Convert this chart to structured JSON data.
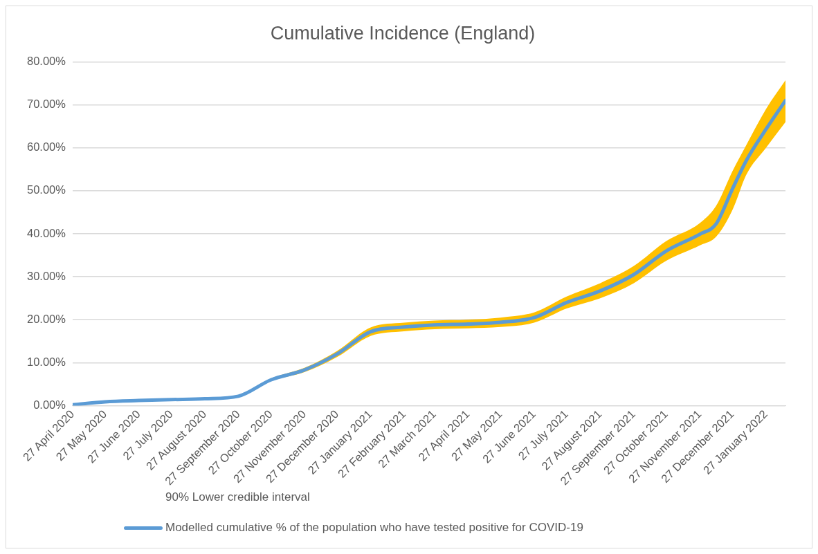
{
  "chart_data": {
    "type": "line",
    "title": "Cumulative Incidence (England)",
    "legend_title": "90% Lower credible interval",
    "legend": "bottom",
    "grid": "y",
    "marker": "none",
    "line_style": "solid",
    "x": [
      "2020-04-27",
      "2020-05-27",
      "2020-06-27",
      "2020-07-27",
      "2020-08-27",
      "2020-09-27",
      "2020-10-27",
      "2020-11-27",
      "2020-12-27",
      "2021-01-27",
      "2021-02-27",
      "2021-03-27",
      "2021-04-27",
      "2021-05-27",
      "2021-06-27",
      "2021-07-27",
      "2021-08-27",
      "2021-09-27",
      "2021-10-27",
      "2021-11-27",
      "2021-12-12",
      "2021-12-27",
      "2022-01-09",
      "2022-01-27",
      "2022-02-14"
    ],
    "series": [
      {
        "name": "Modelled cumulative % of the population who have tested positive for COVID-19",
        "color": "#5b9bd5",
        "values": [
          0.2,
          0.9,
          1.2,
          1.4,
          1.6,
          2.2,
          6.0,
          8.3,
          12.0,
          17.2,
          18.3,
          18.8,
          19.0,
          19.4,
          20.5,
          24.0,
          26.7,
          30.5,
          36.0,
          39.9,
          42.3,
          50.4,
          57.1,
          64.3,
          71.0
        ],
        "lower": [
          0.2,
          0.8,
          1.1,
          1.3,
          1.5,
          2.0,
          5.7,
          7.8,
          11.3,
          16.2,
          17.3,
          17.8,
          18.0,
          18.3,
          19.3,
          22.6,
          25.0,
          28.5,
          33.7,
          37.3,
          39.3,
          45.5,
          53.8,
          60.0,
          66.0
        ],
        "upper": [
          0.2,
          1.0,
          1.3,
          1.5,
          1.7,
          2.4,
          6.3,
          8.8,
          12.7,
          18.2,
          19.3,
          19.8,
          20.0,
          20.5,
          21.7,
          25.4,
          28.5,
          32.5,
          38.3,
          42.5,
          46.5,
          54.5,
          60.7,
          69.0,
          75.7
        ]
      }
    ],
    "xlim": [
      "2020-04-27",
      "2022-02-14"
    ],
    "xticks": [
      {
        "value": "2020-04-27",
        "label": "27 April 2020"
      },
      {
        "value": "2020-05-27",
        "label": "27 May 2020"
      },
      {
        "value": "2020-06-27",
        "label": "27 June 2020"
      },
      {
        "value": "2020-07-27",
        "label": "27 July 2020"
      },
      {
        "value": "2020-08-27",
        "label": "27 August 2020"
      },
      {
        "value": "2020-09-27",
        "label": "27 September 2020"
      },
      {
        "value": "2020-10-27",
        "label": "27 October 2020"
      },
      {
        "value": "2020-11-27",
        "label": "27 November 2020"
      },
      {
        "value": "2020-12-27",
        "label": "27 December 2020"
      },
      {
        "value": "2021-01-27",
        "label": "27 January 2021"
      },
      {
        "value": "2021-02-27",
        "label": "27 February 2021"
      },
      {
        "value": "2021-03-27",
        "label": "27 March 2021"
      },
      {
        "value": "2021-04-27",
        "label": "27 April 2021"
      },
      {
        "value": "2021-05-27",
        "label": "27 May 2021"
      },
      {
        "value": "2021-06-27",
        "label": "27 June 2021"
      },
      {
        "value": "2021-07-27",
        "label": "27 July 2021"
      },
      {
        "value": "2021-08-27",
        "label": "27 August 2021"
      },
      {
        "value": "2021-09-27",
        "label": "27 September 2021"
      },
      {
        "value": "2021-10-27",
        "label": "27 October 2021"
      },
      {
        "value": "2021-11-27",
        "label": "27 November 2021"
      },
      {
        "value": "2021-12-27",
        "label": "27 December 2021"
      },
      {
        "value": "2022-01-27",
        "label": "27 January 2022"
      }
    ],
    "ylim": [
      0,
      80
    ],
    "yticks": [
      {
        "value": 0,
        "label": "0.00%"
      },
      {
        "value": 10,
        "label": "10.00%"
      },
      {
        "value": 20,
        "label": "20.00%"
      },
      {
        "value": 30,
        "label": "30.00%"
      },
      {
        "value": 40,
        "label": "40.00%"
      },
      {
        "value": 50,
        "label": "50.00%"
      },
      {
        "value": 60,
        "label": "60.00%"
      },
      {
        "value": 70,
        "label": "70.00%"
      },
      {
        "value": 80,
        "label": "80.00%"
      }
    ]
  }
}
